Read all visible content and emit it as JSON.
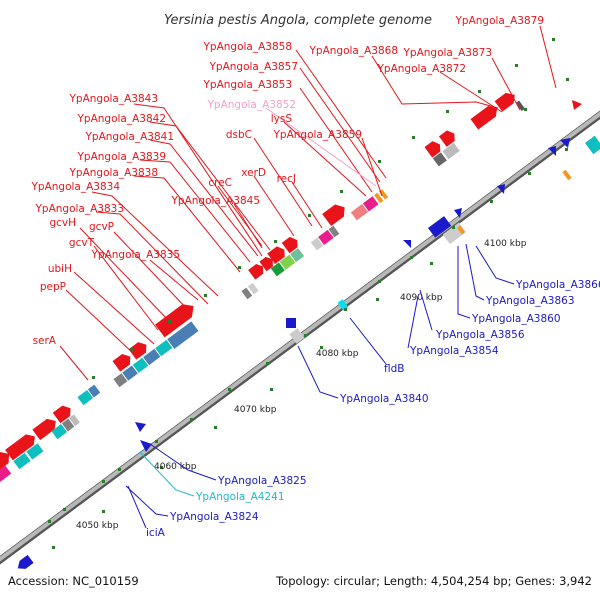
{
  "title": "Yersinia pestis Angola, complete genome",
  "footer": {
    "accession": "Accession: NC_010159",
    "stats": "Topology: circular; Length: 4,504,254 bp; Genes: 3,942"
  },
  "colors": {
    "forward_label": "#e8141a",
    "reverse_label": "#1a1acc",
    "rna_label": "#22b8cc",
    "pseudo_label": "#f4a0c8",
    "backbone": "#8a8a8a"
  },
  "ticks": [
    "4050 kbp",
    "4060 kbp",
    "4070 kbp",
    "4080 kbp",
    "4090 kbp",
    "4100 kbp"
  ],
  "labels_top": [
    "YpAngola_A3879",
    "YpAngola_A3858",
    "YpAngola_A3868",
    "YpAngola_A3873",
    "YpAngola_A3857",
    "YpAngola_A3872",
    "YpAngola_A3853",
    "YpAngola_A3843",
    "YpAngola_A3852",
    "lysS",
    "YpAngola_A3842",
    "dsbC",
    "YpAngola_A3859",
    "YpAngola_A3841",
    "YpAngola_A3839",
    "xerD",
    "recJ",
    "YpAngola_A3838",
    "creC",
    "YpAngola_A3834",
    "YpAngola_A3845",
    "YpAngola_A3833",
    "gcvH",
    "gcvP",
    "gcvT",
    "YpAngola_A3835",
    "ubiH",
    "pepP",
    "serA"
  ],
  "labels_bottom": [
    "YpAngola_A3866",
    "YpAngola_A3863",
    "YpAngola_A3860",
    "YpAngola_A3856",
    "YpAngola_A3854",
    "fldB",
    "YpAngola_A3840",
    "YpAngola_A3825",
    "YpAngola_A4241",
    "YpAngola_A3824",
    "iciA"
  ]
}
